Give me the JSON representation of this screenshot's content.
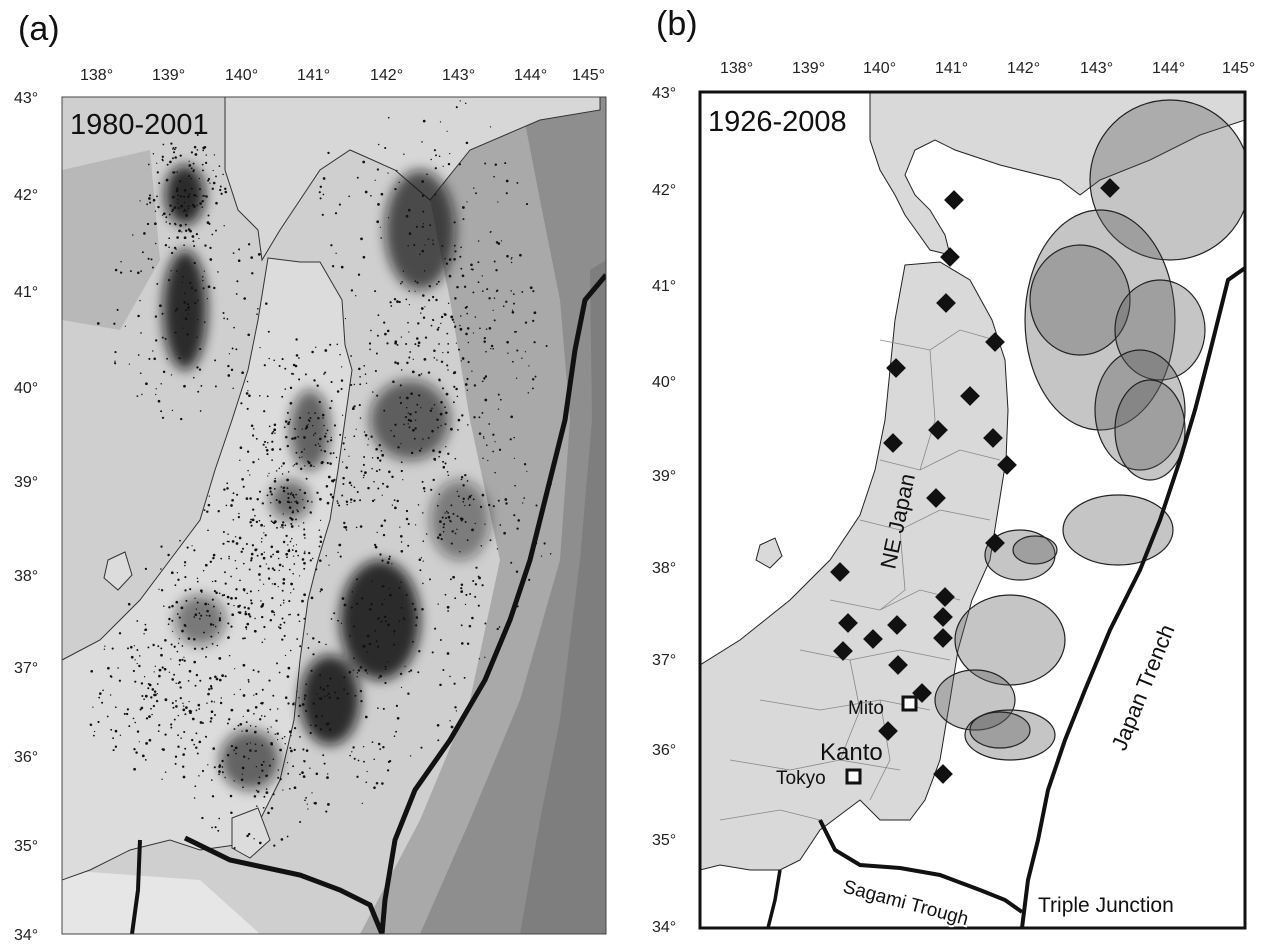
{
  "panel_a": {
    "label": "(a)",
    "period": "1980-2001",
    "lon_ticks": [
      "138°",
      "139°",
      "140°",
      "141°",
      "142°",
      "143°",
      "144°",
      "145°"
    ],
    "lat_ticks": [
      "43°",
      "42°",
      "41°",
      "40°",
      "39°",
      "38°",
      "37°",
      "36°",
      "35°",
      "34°"
    ]
  },
  "panel_b": {
    "label": "(b)",
    "period": "1926-2008",
    "lon_ticks": [
      "138°",
      "139°",
      "140°",
      "141°",
      "142°",
      "143°",
      "144°",
      "145°"
    ],
    "lat_ticks": [
      "43°",
      "42°",
      "41°",
      "40°",
      "39°",
      "38°",
      "37°",
      "36°",
      "35°",
      "34°"
    ],
    "places": {
      "ne_japan": "NE Japan",
      "japan_trench": "Japan Trench",
      "mito": "Mito",
      "kanto": "Kanto",
      "tokyo": "Tokyo",
      "sagami_trough": "Sagami Trough",
      "triple_junction": "Triple Junction"
    }
  },
  "colors": {
    "sea_light": "#d6d6d6",
    "sea_mid": "#b2b2b2",
    "sea_deep": "#8f8f8f",
    "land": "#d8d8d8",
    "seismicity": "#111111",
    "rupture_fill": "#6f6f6f",
    "trench": "#111111"
  }
}
